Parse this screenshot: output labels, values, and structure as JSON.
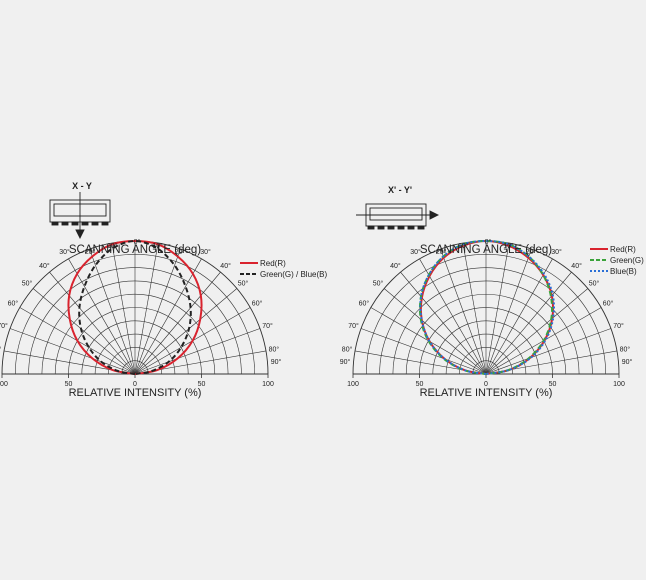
{
  "chart_data": [
    {
      "type": "polar",
      "title": "SCANNING ANGLE (deg)",
      "xlabel": "RELATIVE INTENSITY  (%)",
      "diagram_label": "X - Y",
      "angle_ticks": [
        "0°",
        "10°",
        "20°",
        "30°",
        "40°",
        "50°",
        "60°",
        "70°",
        "80°",
        "90°"
      ],
      "radial_ticks": [
        "100",
        "50",
        "0",
        "50",
        "100"
      ],
      "radial_range": [
        0,
        100
      ],
      "angle_range": [
        -90,
        90
      ],
      "angles_deg": [
        -90,
        -80,
        -70,
        -60,
        -50,
        -40,
        -30,
        -20,
        -10,
        0,
        10,
        20,
        30,
        40,
        50,
        60,
        70,
        80,
        90
      ],
      "legend": {
        "position": "top-right"
      },
      "series": [
        {
          "name": "Red(R)",
          "color": "#d9232e",
          "style": "solid",
          "values": [
            0,
            17,
            34,
            50,
            64,
            77,
            87,
            94,
            99,
            100,
            99,
            94,
            87,
            77,
            64,
            50,
            34,
            17,
            0
          ]
        },
        {
          "name": "Green(G) / Blue(B)",
          "color": "#222222",
          "style": "dashed",
          "values": [
            0,
            13,
            27,
            40,
            53,
            65,
            76,
            87,
            96,
            100,
            96,
            87,
            76,
            65,
            53,
            40,
            27,
            13,
            0
          ]
        }
      ]
    },
    {
      "type": "polar",
      "title": "SCANNING ANGLE (deg)",
      "xlabel": "RELATIVE INTENSITY  (%)",
      "diagram_label": "X' - Y'",
      "angle_ticks": [
        "0°",
        "10°",
        "20°",
        "30°",
        "40°",
        "50°",
        "60°",
        "70°",
        "80°",
        "90°"
      ],
      "radial_ticks": [
        "100",
        "50",
        "0",
        "50",
        "100"
      ],
      "radial_range": [
        0,
        100
      ],
      "angle_range": [
        -90,
        90
      ],
      "angles_deg": [
        -90,
        -80,
        -70,
        -60,
        -50,
        -40,
        -30,
        -20,
        -10,
        0,
        10,
        20,
        30,
        40,
        50,
        60,
        70,
        80,
        90
      ],
      "legend": {
        "position": "top-right"
      },
      "series": [
        {
          "name": "Red(R)",
          "color": "#d9232e",
          "style": "solid",
          "values": [
            0,
            16,
            33,
            49,
            63,
            75,
            85,
            93,
            98,
            100,
            98,
            93,
            86,
            77,
            65,
            51,
            35,
            18,
            0
          ]
        },
        {
          "name": "Green(G)",
          "color": "#3aa33a",
          "style": "dashed",
          "values": [
            0,
            17,
            34,
            50,
            64,
            76,
            86,
            94,
            99,
            100,
            99,
            94,
            86,
            76,
            64,
            50,
            34,
            17,
            0
          ]
        },
        {
          "name": "Blue(B)",
          "color": "#2a6fd6",
          "style": "dotted",
          "values": [
            0,
            16,
            33,
            49,
            63,
            76,
            86,
            94,
            99,
            100,
            99,
            94,
            87,
            78,
            66,
            52,
            36,
            18,
            0
          ]
        }
      ]
    }
  ]
}
